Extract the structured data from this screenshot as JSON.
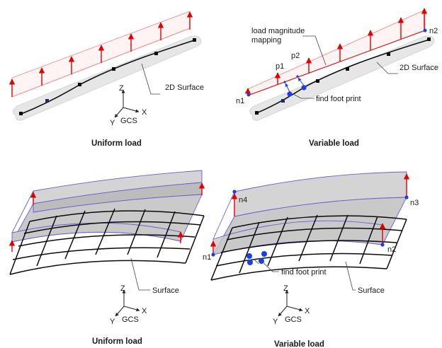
{
  "panels": {
    "top_left": {
      "caption": "Uniform load",
      "surface_label": "2D Surface",
      "axes": {
        "z": "Z",
        "x": "X",
        "y": "Y",
        "gcs": "GCS"
      }
    },
    "top_right": {
      "caption": "Variable load",
      "mapping_label_line1": "load magnitude",
      "mapping_label_line2": "mapping",
      "surface_label": "2D Surface",
      "foot_print_label": "find foot print",
      "node_n1": "n1",
      "node_n2": "n2",
      "point_p1": "p1",
      "point_p2": "p2"
    },
    "bottom_left": {
      "caption": "Uniform load",
      "surface_label": "Surface",
      "axes": {
        "z": "Z",
        "x": "X",
        "y": "Y",
        "gcs": "GCS"
      }
    },
    "bottom_right": {
      "caption": "Variable load",
      "surface_label": "Surface",
      "foot_print_label": "find foot print",
      "node_n1": "n1",
      "node_n2": "n2",
      "node_n3": "n3",
      "node_n4": "n4",
      "axes": {
        "z": "Z",
        "x": "X",
        "y": "Y",
        "gcs": "GCS"
      }
    }
  },
  "colors": {
    "load_arrow": "#e00000",
    "load_plane_edge": "#f08a8a",
    "node": "#0a0a0a",
    "highlight_node": "#1a3ee8",
    "surface_shadow": "#e6e6e6",
    "load_surface_fill": "#c4c4c4",
    "load_surface_edge": "#6a5fd0"
  }
}
